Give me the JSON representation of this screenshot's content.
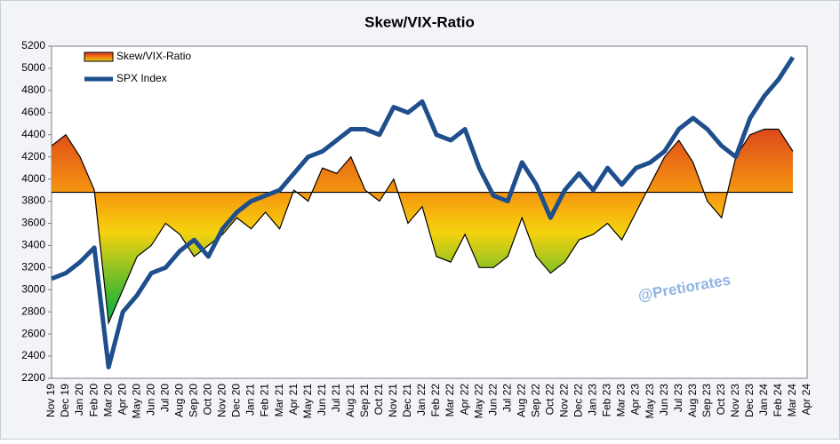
{
  "chart_data": {
    "type": "line",
    "title": "Skew/VIX-Ratio",
    "annotation": "@Pretiorates",
    "categories": [
      "Nov 19",
      "Dec 19",
      "Jan 20",
      "Feb 20",
      "Mar 20",
      "Apr 20",
      "May 20",
      "Jun 20",
      "Jul 20",
      "Aug 20",
      "Sep 20",
      "Oct 20",
      "Nov 20",
      "Dec 20",
      "Jan 21",
      "Feb 21",
      "Mar 21",
      "Apr 21",
      "May 21",
      "Jun 21",
      "Jul 21",
      "Aug 21",
      "Sep 21",
      "Oct 21",
      "Nov 21",
      "Dec 21",
      "Jan 22",
      "Feb 22",
      "Mar 22",
      "Apr 22",
      "May 22",
      "Jun 22",
      "Jul 22",
      "Aug 22",
      "Sep 22",
      "Oct 22",
      "Nov 22",
      "Dec 22",
      "Jan 23",
      "Feb 23",
      "Mar 23",
      "Apr 23",
      "May 23",
      "Jun 23",
      "Jul 23",
      "Aug 23",
      "Sep 23",
      "Oct 23",
      "Nov 23",
      "Dec 23",
      "Jan 24",
      "Feb 24",
      "Mar 24",
      "Apr 24"
    ],
    "series": [
      {
        "name": "Skew/VIX-Ratio",
        "style": "area",
        "base": 3880,
        "color": "#e8601c",
        "values": [
          4300,
          4400,
          4200,
          3900,
          2700,
          3000,
          3300,
          3400,
          3600,
          3500,
          3300,
          3400,
          3500,
          3650,
          3550,
          3700,
          3550,
          3900,
          3800,
          4100,
          4050,
          4200,
          3900,
          3800,
          4000,
          3600,
          3750,
          3300,
          3250,
          3500,
          3200,
          3200,
          3300,
          3650,
          3300,
          3150,
          3250,
          3450,
          3500,
          3600,
          3450,
          3700,
          3950,
          4200,
          4350,
          4150,
          3800,
          3650,
          4200,
          4400,
          4450,
          4450,
          4250,
          null
        ]
      },
      {
        "name": "SPX Index",
        "style": "line",
        "color": "#1f4e8c",
        "values": [
          3100,
          3150,
          3250,
          3380,
          2300,
          2800,
          2950,
          3150,
          3200,
          3350,
          3450,
          3300,
          3550,
          3700,
          3800,
          3850,
          3900,
          4050,
          4200,
          4250,
          4350,
          4450,
          4450,
          4400,
          4650,
          4600,
          4700,
          4400,
          4350,
          4450,
          4100,
          3850,
          3800,
          4150,
          3950,
          3650,
          3900,
          4050,
          3900,
          4100,
          3950,
          4100,
          4150,
          4250,
          4450,
          4550,
          4450,
          4300,
          4200,
          4550,
          4750,
          4900,
          5100,
          null
        ]
      }
    ],
    "ylim": [
      2200,
      5200
    ],
    "yticks": [
      2200,
      2400,
      2600,
      2800,
      3000,
      3200,
      3400,
      3600,
      3800,
      4000,
      4200,
      4400,
      4600,
      4800,
      5000,
      5200
    ],
    "legend": "top-left"
  }
}
